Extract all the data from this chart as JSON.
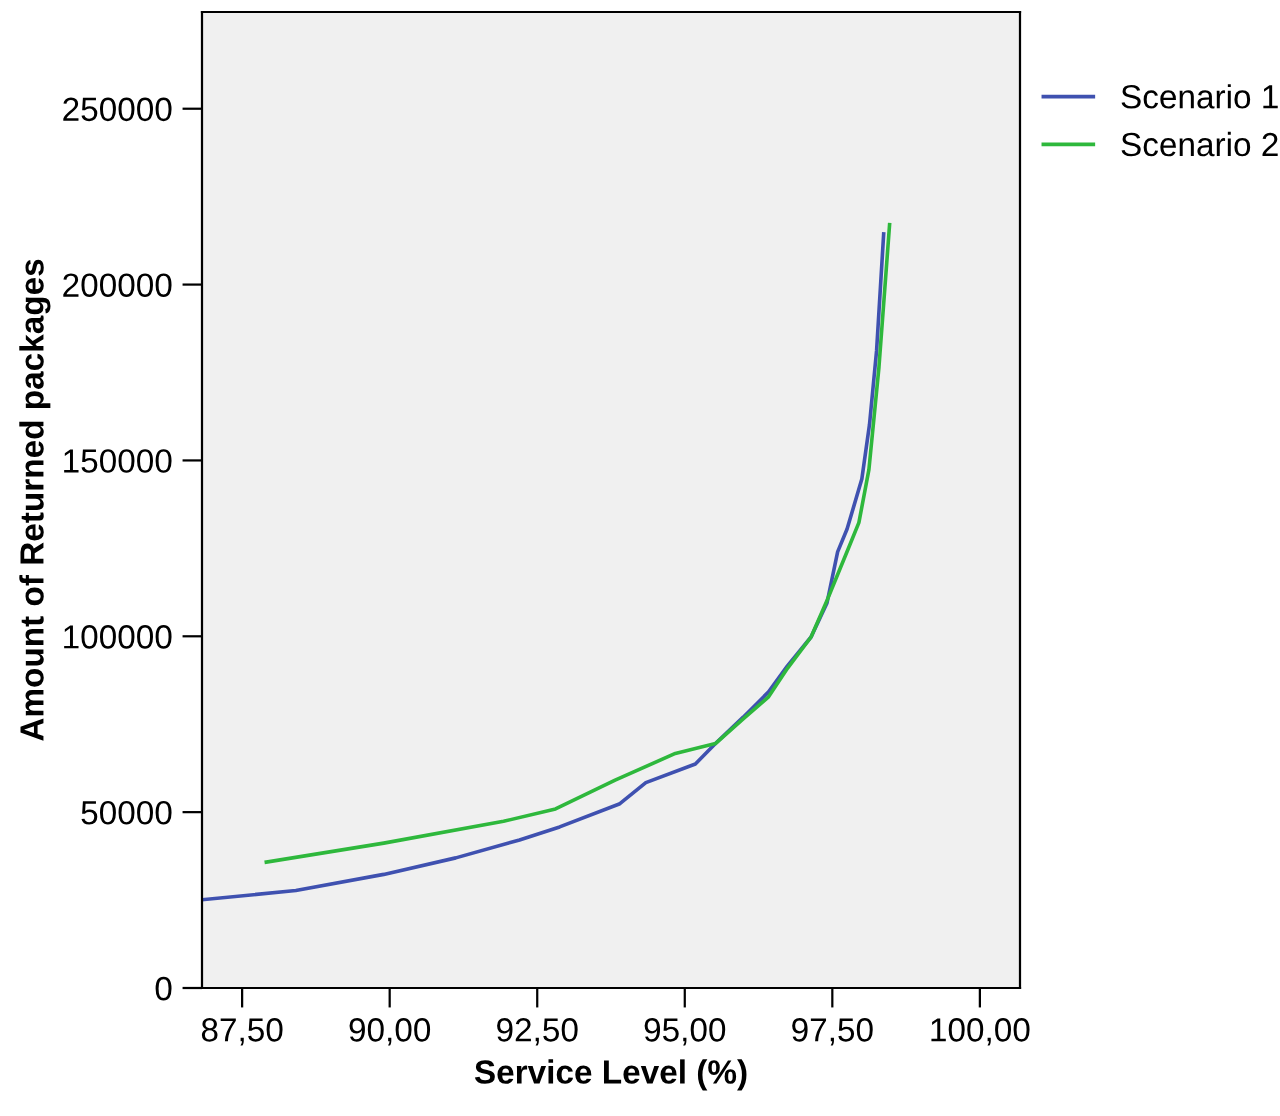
{
  "chart_data": {
    "type": "line",
    "xlabel": "Service Level (%)",
    "ylabel": "Amount of Returned packages",
    "series": [
      {
        "name": "Scenario 1",
        "color": "#3f51b0",
        "x": [
          86.82,
          88.41,
          89.9,
          91.12,
          92.2,
          92.88,
          93.89,
          94.34,
          95.18,
          95.52,
          95.99,
          96.42,
          96.74,
          97.14,
          97.41,
          97.59,
          97.75,
          98.0,
          98.13,
          98.25,
          98.37
        ],
        "values": [
          25100,
          27700,
          32300,
          37000,
          42100,
          45800,
          52300,
          58400,
          63700,
          69500,
          77000,
          84200,
          91600,
          99800,
          109500,
          124000,
          130500,
          144700,
          160200,
          181200,
          214400
        ]
      },
      {
        "name": "Scenario 2",
        "color": "#2eb83c",
        "x": [
          87.91,
          89.9,
          91.93,
          92.81,
          93.82,
          94.84,
          95.52,
          95.99,
          96.42,
          96.74,
          97.14,
          97.41,
          97.78,
          97.95,
          98.12,
          98.29,
          98.47
        ],
        "values": [
          35800,
          41200,
          47400,
          50900,
          59100,
          66700,
          69500,
          76500,
          82800,
          90900,
          99800,
          110200,
          125300,
          132300,
          147400,
          176500,
          217000
        ]
      }
    ],
    "xlim": [
      86.82,
      100.68
    ],
    "ylim": [
      0,
      277500
    ],
    "xticks": [
      {
        "value": 87.5,
        "label": "87,50"
      },
      {
        "value": 90,
        "label": "90,00"
      },
      {
        "value": 92.5,
        "label": "92,50"
      },
      {
        "value": 95,
        "label": "95,00"
      },
      {
        "value": 97.5,
        "label": "97,50"
      },
      {
        "value": 100,
        "label": "100,00"
      }
    ],
    "yticks": [
      0,
      50000,
      100000,
      150000,
      200000,
      250000
    ],
    "legend": "right",
    "marker": "none",
    "line_style": "solid"
  }
}
